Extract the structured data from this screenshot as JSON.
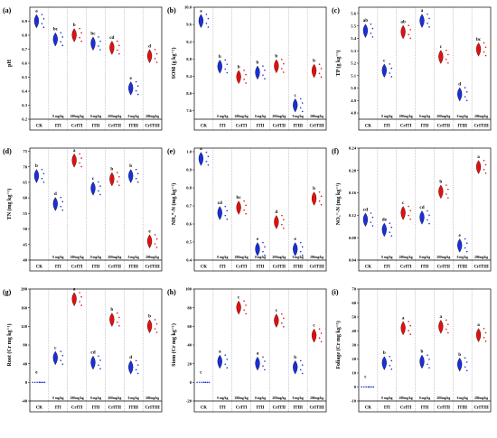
{
  "categories": [
    "CK",
    "ITI",
    "CrITI",
    "ITII",
    "CrITII",
    "ITIII",
    "CrITIII"
  ],
  "doses": [
    "0 mg/kg",
    "200mg/kg",
    "0 mg/kg",
    "200mg/kg",
    "0 mg/kg",
    "200mg/kg"
  ],
  "colors": {
    "blue": "#1a2fd6",
    "red": "#e01010"
  },
  "chart_data": [
    {
      "panel": "(a)",
      "type": "violin",
      "ylabel": "pH",
      "ylim": [
        6.2,
        7.0
      ],
      "yticks": [
        6.2,
        6.3,
        6.4,
        6.5,
        6.6,
        6.7,
        6.8,
        6.9
      ],
      "tick_labels": [
        "6.2",
        "6.3",
        "6.4",
        "6.5",
        "6.6",
        "6.7",
        "6.8",
        "6.9"
      ],
      "values": [
        6.9,
        6.77,
        6.8,
        6.74,
        6.71,
        6.42,
        6.65
      ],
      "letters": [
        "a",
        "bc",
        "b",
        "bc",
        "cd",
        "e",
        "d"
      ]
    },
    {
      "panel": "(b)",
      "type": "violin",
      "ylabel": "SOM (g kg⁻¹)",
      "ylim": [
        7.4,
        10.0
      ],
      "yticks": [
        7.6,
        8.0,
        8.4,
        8.8,
        9.2,
        9.6,
        10.0
      ],
      "tick_labels": [
        "7.6",
        "8.0",
        "8.4",
        "8.8",
        "9.2",
        "9.6",
        "10.0"
      ],
      "values": [
        9.68,
        8.62,
        8.38,
        8.48,
        8.63,
        7.72,
        8.52
      ],
      "letters": [
        "a",
        "b",
        "b",
        "b",
        "b",
        "c",
        "b"
      ]
    },
    {
      "panel": "(c)",
      "type": "violin",
      "ylabel": "TP (g kg⁻¹)",
      "ylim": [
        4.75,
        5.65
      ],
      "yticks": [
        4.8,
        4.9,
        5.0,
        5.1,
        5.2,
        5.3,
        5.4,
        5.5,
        5.6
      ],
      "tick_labels": [
        "4.8",
        "4.9",
        "5.0",
        "5.1",
        "5.2",
        "5.3",
        "5.4",
        "5.5",
        "5.6"
      ],
      "values": [
        5.46,
        5.14,
        5.45,
        5.54,
        5.25,
        4.95,
        5.31
      ],
      "letters": [
        "ab",
        "c",
        "ab",
        "a",
        "c",
        "d",
        "bc"
      ]
    },
    {
      "panel": "(d)",
      "type": "violin",
      "ylabel": "TN (mg kg⁻¹)",
      "ylim": [
        40,
        76
      ],
      "yticks": [
        40,
        45,
        50,
        55,
        60,
        65,
        70,
        75
      ],
      "tick_labels": [
        "40",
        "45",
        "50",
        "55",
        "60",
        "65",
        "70",
        "75"
      ],
      "values": [
        67,
        58,
        72,
        63,
        66,
        67,
        46
      ],
      "letters": [
        "b",
        "d",
        "a",
        "c",
        "b",
        "b",
        "e"
      ]
    },
    {
      "panel": "(e)",
      "type": "violin",
      "ylabel": "NH₄⁺-N (mg kg⁻¹)",
      "ylim": [
        0.4,
        1.02
      ],
      "yticks": [
        0.4,
        0.5,
        0.6,
        0.7,
        0.8,
        0.9,
        1.0
      ],
      "tick_labels": [
        "0.4",
        "0.5",
        "0.6",
        "0.7",
        "0.8",
        "0.9",
        "1.0"
      ],
      "values": [
        0.96,
        0.66,
        0.69,
        0.46,
        0.61,
        0.46,
        0.74
      ],
      "letters": [
        "a",
        "cd",
        "bc",
        "e",
        "d",
        "e",
        "b"
      ]
    },
    {
      "panel": "(f)",
      "type": "violin",
      "ylabel": "NO₃⁻-N (mg kg⁻¹)",
      "ylim": [
        0.04,
        0.24
      ],
      "yticks": [
        0.04,
        0.08,
        0.12,
        0.16,
        0.2,
        0.24
      ],
      "tick_labels": [
        "0.04",
        "0.08",
        "0.12",
        "0.16",
        "0.20",
        "0.24"
      ],
      "values": [
        0.112,
        0.094,
        0.124,
        0.116,
        0.162,
        0.066,
        0.206
      ],
      "letters": [
        "cd",
        "de",
        "c",
        "cd",
        "b",
        "e",
        "a"
      ]
    },
    {
      "panel": "(g)",
      "type": "violin",
      "ylabel": "Root (Cr mg kg⁻¹)",
      "ylim": [
        -40,
        200
      ],
      "yticks": [
        -40,
        0,
        40,
        80,
        120,
        160,
        200
      ],
      "tick_labels": [
        "-40",
        "0",
        "40",
        "80",
        "120",
        "160",
        "200"
      ],
      "values": [
        0,
        52,
        178,
        42,
        134,
        32,
        120
      ],
      "letters": [
        "e",
        "c",
        "a",
        "cd",
        "b",
        "d",
        "b"
      ]
    },
    {
      "panel": "(h)",
      "type": "violin",
      "ylabel": "Stem (Cr mg kg⁻¹)",
      "ylim": [
        -20,
        100
      ],
      "yticks": [
        -20,
        0,
        20,
        40,
        60,
        80,
        100
      ],
      "tick_labels": [
        "-20",
        "0",
        "20",
        "40",
        "60",
        "80",
        "100"
      ],
      "values": [
        0,
        22,
        80,
        20,
        66,
        16,
        50
      ],
      "letters": [
        "c",
        "a",
        "c",
        "a",
        "c",
        "b",
        "c"
      ]
    },
    {
      "panel": "(i)",
      "type": "violin",
      "ylabel": "Foliage (Cr mg kg⁻¹)",
      "ylim": [
        -10,
        70
      ],
      "yticks": [
        -10,
        0,
        10,
        20,
        30,
        40,
        50,
        60,
        70
      ],
      "tick_labels": [
        "-10",
        "0",
        "10",
        "20",
        "30",
        "40",
        "50",
        "60",
        "70"
      ],
      "values": [
        0,
        17,
        42,
        18,
        43,
        16,
        37
      ],
      "letters": [
        "c",
        "b",
        "a",
        "b",
        "a",
        "b",
        "a"
      ]
    }
  ]
}
